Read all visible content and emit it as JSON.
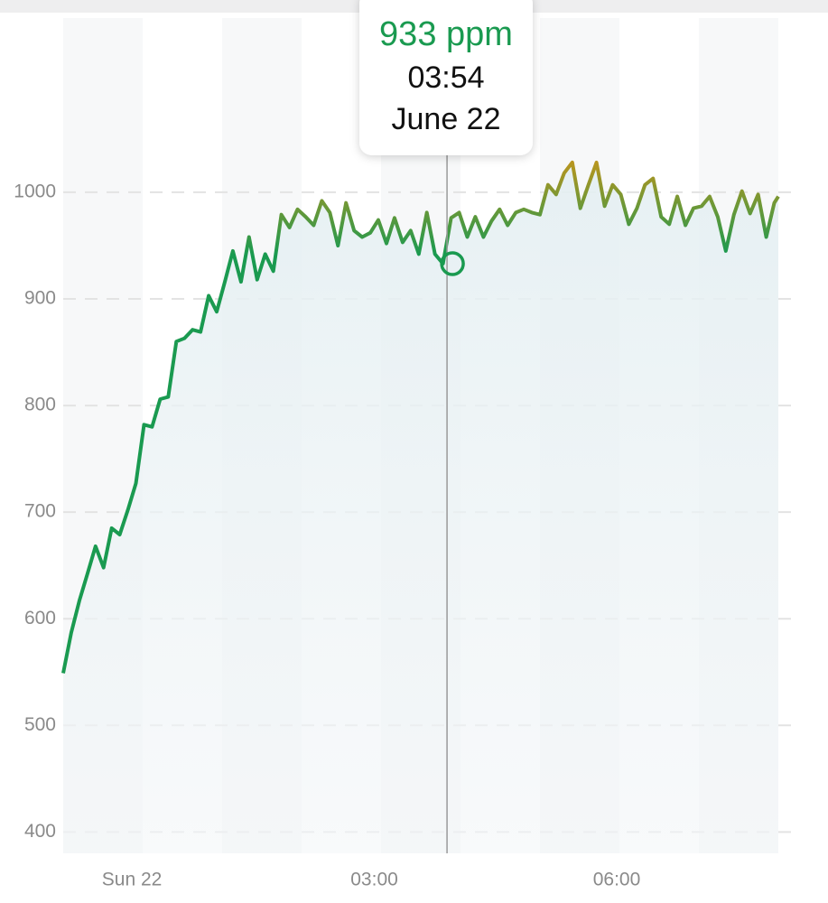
{
  "chart_data": {
    "type": "line",
    "x": [
      -0.85,
      -0.75,
      -0.65,
      -0.55,
      -0.45,
      -0.35,
      -0.25,
      -0.15,
      -0.05,
      0.05,
      0.15,
      0.25,
      0.35,
      0.45,
      0.55,
      0.65,
      0.75,
      0.85,
      0.95,
      1.05,
      1.15,
      1.25,
      1.35,
      1.45,
      1.55,
      1.65,
      1.75,
      1.85,
      1.95,
      2.05,
      2.15,
      2.25,
      2.35,
      2.45,
      2.55,
      2.65,
      2.75,
      2.85,
      2.95,
      3.05,
      3.15,
      3.25,
      3.35,
      3.45,
      3.55,
      3.65,
      3.75,
      3.85,
      3.95,
      4.05,
      4.15,
      4.25,
      4.35,
      4.45,
      4.55,
      4.65,
      4.75,
      4.85,
      4.95,
      5.05,
      5.15,
      5.25,
      5.35,
      5.45,
      5.55,
      5.65,
      5.75,
      5.85,
      5.95,
      6.05,
      6.15,
      6.25,
      6.35,
      6.45,
      6.55,
      6.65,
      6.75,
      6.85,
      6.95,
      7.05,
      7.15,
      7.25,
      7.35,
      7.45,
      7.55,
      7.65,
      7.75,
      7.85,
      7.95,
      8.0
    ],
    "values": [
      549,
      587,
      617,
      642,
      668,
      648,
      685,
      679,
      702,
      727,
      782,
      780,
      806,
      808,
      860,
      863,
      871,
      869,
      903,
      888,
      916,
      945,
      916,
      958,
      918,
      942,
      926,
      979,
      967,
      984,
      977,
      969,
      992,
      981,
      950,
      990,
      964,
      958,
      962,
      974,
      952,
      976,
      953,
      964,
      942,
      981,
      942,
      933,
      976,
      981,
      958,
      977,
      958,
      973,
      984,
      969,
      981,
      984,
      981,
      979,
      1007,
      998,
      1018,
      1028,
      985,
      1007,
      1028,
      987,
      1007,
      998,
      970,
      985,
      1007,
      1013,
      977,
      970,
      996,
      969,
      985,
      987,
      996,
      977,
      945,
      979,
      1001,
      980,
      998,
      958,
      990,
      996
    ],
    "color": "#1a9a50",
    "high_color": "#c4951c",
    "xlim": [
      -0.85,
      8.0
    ],
    "xticks": [
      {
        "value": 0,
        "label": "Sun 22"
      },
      {
        "value": 3,
        "label": "03:00"
      },
      {
        "value": 6,
        "label": "06:00"
      }
    ],
    "ylim": [
      380,
      1160
    ],
    "yticks": [
      400,
      500,
      600,
      700,
      800,
      900,
      1000
    ],
    "grid": true,
    "tooltip": {
      "x": 3.9,
      "value": 933,
      "label": "933 ppm",
      "time": "03:54",
      "date": "June 22"
    }
  }
}
